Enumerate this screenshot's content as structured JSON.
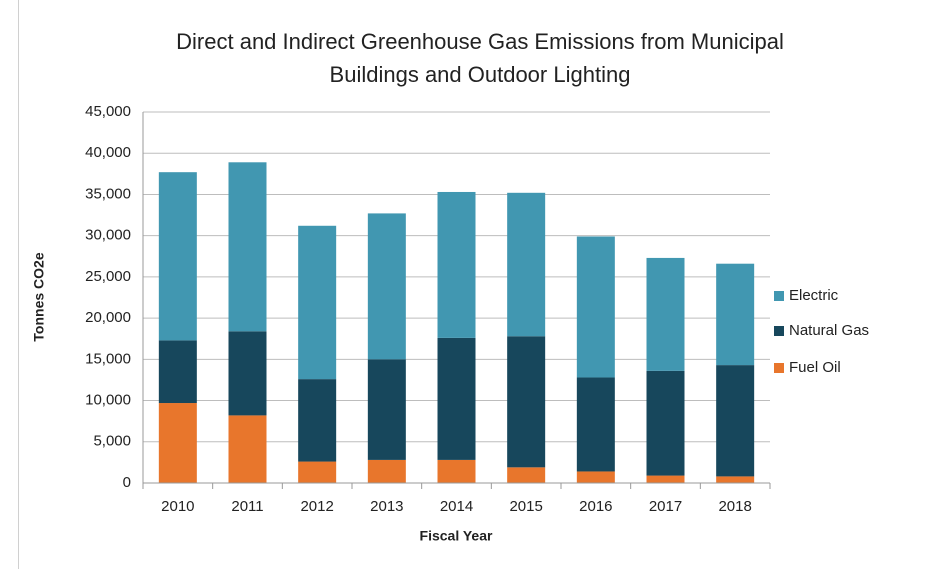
{
  "chart_data": {
    "type": "stacked_bar",
    "title": [
      "Direct and Indirect Greenhouse Gas Emissions from Municipal",
      "Buildings and Outdoor Lighting"
    ],
    "x_label": "Fiscal Year",
    "y_label": "Tonnes CO2e",
    "categories": [
      "2010",
      "2011",
      "2012",
      "2013",
      "2014",
      "2015",
      "2016",
      "2017",
      "2018"
    ],
    "series": [
      {
        "name": "Fuel Oil",
        "color": "#e8762c",
        "values": [
          9700,
          8200,
          2600,
          2800,
          2800,
          1900,
          1400,
          900,
          800
        ]
      },
      {
        "name": "Natural Gas",
        "color": "#17475c",
        "values": [
          7600,
          10200,
          10000,
          12200,
          14800,
          15900,
          11400,
          12700,
          13500
        ]
      },
      {
        "name": "Electric",
        "color": "#4197b1",
        "values": [
          20400,
          20500,
          18600,
          17700,
          17700,
          17400,
          17100,
          13700,
          12300
        ]
      }
    ],
    "ylim": [
      0,
      45000
    ],
    "yticks": [
      0,
      {
        "value": 5000,
        "label": "5,000"
      },
      {
        "value": 10000,
        "label": "10,000"
      },
      {
        "value": 15000,
        "label": "15,000"
      },
      {
        "value": 20000,
        "label": "20,000"
      },
      {
        "value": 25000,
        "label": "25,000"
      },
      {
        "value": 30000,
        "label": "30,000"
      },
      {
        "value": 35000,
        "label": "35,000"
      },
      {
        "value": 40000,
        "label": "40,000"
      },
      {
        "value": 45000,
        "label": "45,000"
      }
    ],
    "grid": true,
    "legend": "right"
  }
}
